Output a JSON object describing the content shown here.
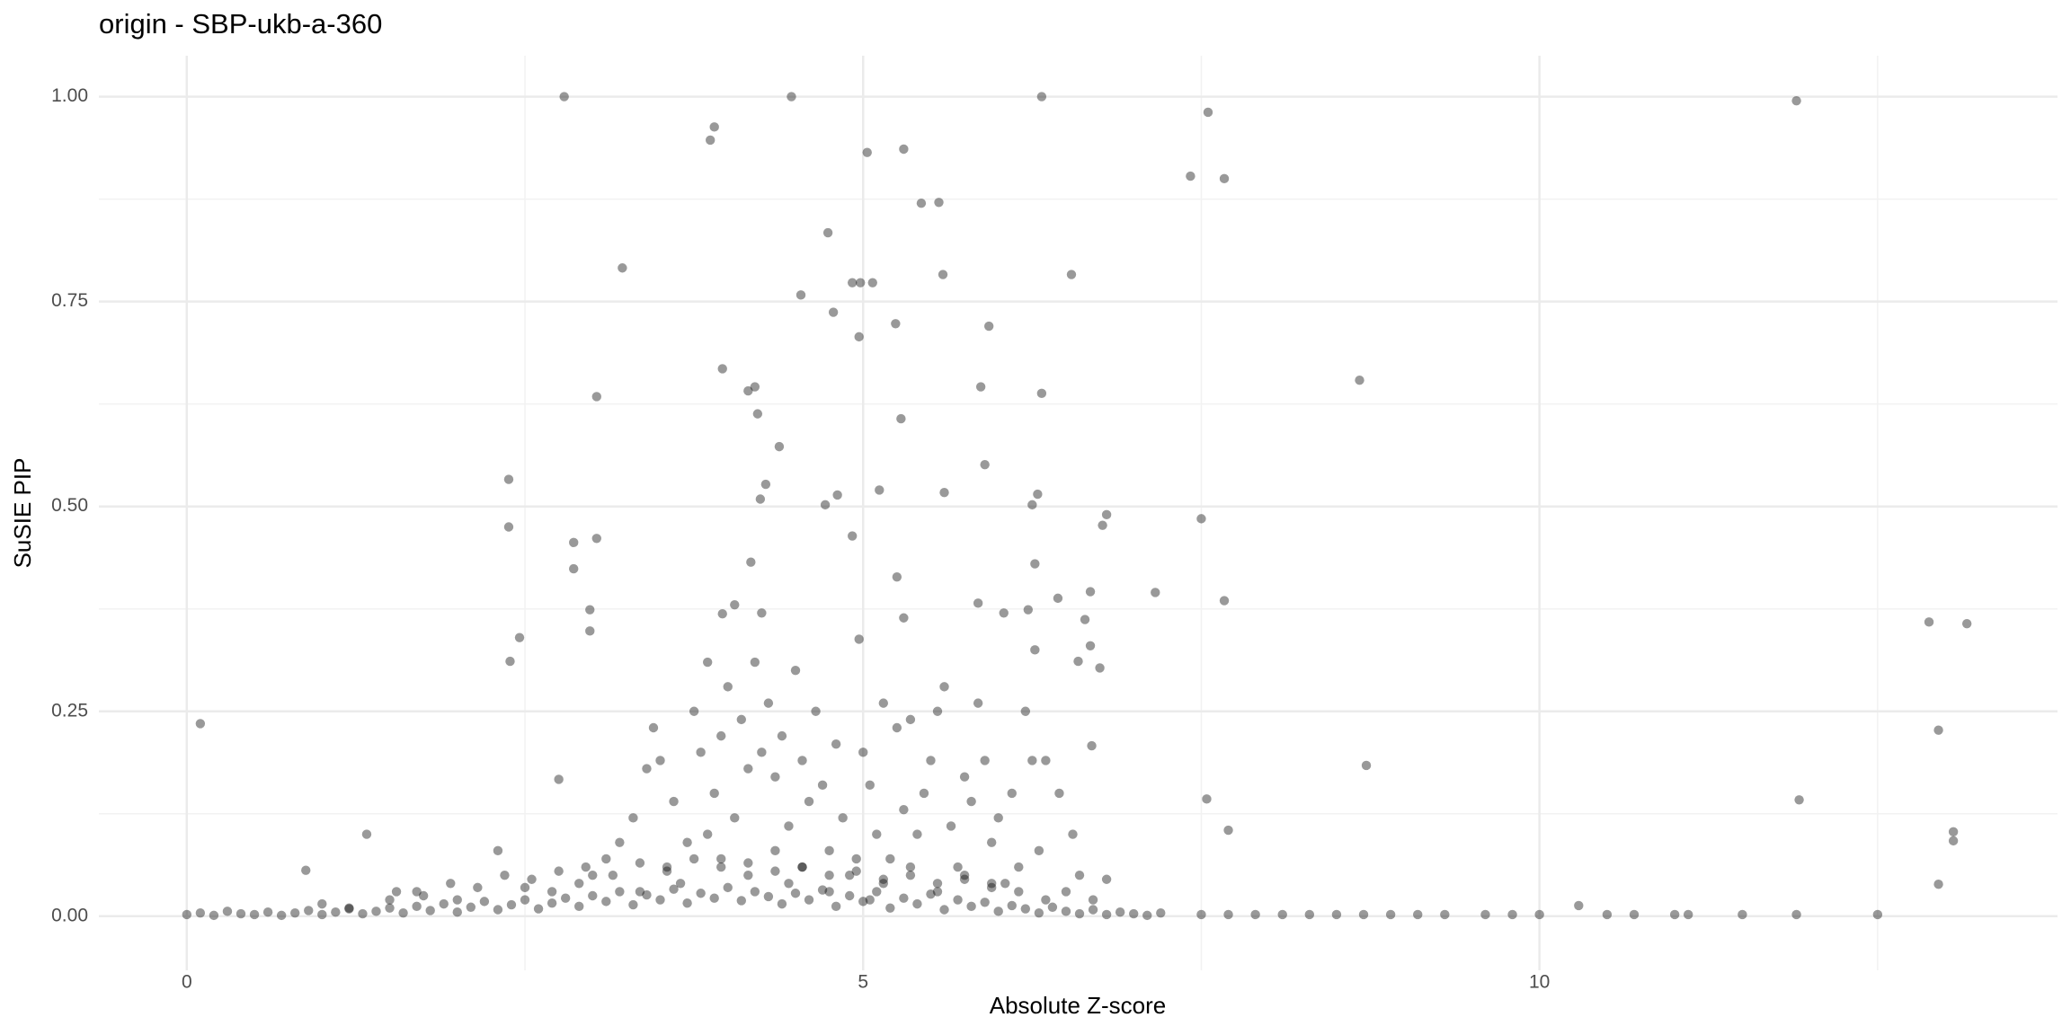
{
  "chart_data": {
    "type": "scatter",
    "title": "origin - SBP-ukb-a-360",
    "x_label": "Absolute Z-score",
    "y_label": "SuSIE PIP",
    "color": "#000000",
    "opacity": 0.4,
    "grid": true,
    "minor_grid": true,
    "xlim": [
      -0.65,
      13.83
    ],
    "ylim": [
      -0.066,
      1.05
    ],
    "xticks": [
      0,
      5,
      10
    ],
    "yticks": [
      {
        "value": 0,
        "label": "0.00"
      },
      {
        "value": 0.25,
        "label": "0.25"
      },
      {
        "value": 0.5,
        "label": "0.50"
      },
      {
        "value": 0.75,
        "label": "0.75"
      },
      {
        "value": 1,
        "label": "1.00"
      }
    ],
    "x": [
      2.79,
      4.47,
      6.32,
      11.9,
      3.9,
      3.87,
      5.3,
      5.03,
      7.55,
      7.42,
      7.67,
      5.43,
      5.56,
      4.74,
      3.22,
      5.59,
      6.54,
      4.92,
      4.98,
      5.07,
      4.54,
      4.78,
      5.24,
      5.93,
      4.97,
      3.96,
      8.67,
      4.15,
      4.2,
      5.87,
      6.32,
      3.03,
      4.22,
      5.28,
      4.38,
      5.9,
      2.38,
      4.28,
      5.12,
      5.6,
      6.29,
      4.81,
      4.24,
      4.72,
      6.25,
      6.8,
      7.5,
      6.77,
      2.38,
      4.92,
      3.03,
      2.86,
      5.25,
      2.86,
      6.27,
      7.16,
      6.68,
      7.67,
      6.44,
      4.17,
      12.88,
      13.16,
      2.98,
      5.85,
      6.04,
      6.22,
      3.96,
      5.3,
      6.64,
      2.46,
      2.98,
      4.97,
      6.68,
      6.27,
      6.59,
      2.39,
      6.75,
      12.95,
      0.1,
      8.72,
      7.54,
      11.92,
      13.06,
      7.7,
      13.06,
      12.95,
      1.33,
      2.75,
      6.69,
      0.88,
      7.5,
      7.7,
      7.9,
      8.1,
      8.3,
      8.5,
      8.7,
      8.9,
      9.1,
      9.3,
      9.6,
      9.8,
      10.0,
      10.29,
      10.5,
      10.7,
      11.0,
      11.1,
      11.5,
      11.9,
      12.5,
      3.3,
      3.4,
      3.45,
      3.5,
      3.6,
      3.7,
      3.75,
      3.8,
      3.85,
      3.9,
      3.95,
      4.0,
      4.05,
      4.1,
      4.15,
      4.2,
      4.25,
      4.3,
      4.35,
      4.4,
      4.45,
      4.5,
      4.55,
      4.6,
      4.65,
      4.7,
      4.75,
      4.8,
      4.85,
      4.9,
      5.0,
      5.05,
      5.1,
      5.15,
      5.2,
      5.25,
      5.3,
      5.35,
      5.4,
      5.45,
      5.5,
      5.55,
      5.6,
      5.65,
      5.7,
      5.75,
      5.8,
      5.85,
      5.9,
      5.95,
      6.0,
      6.05,
      6.1,
      6.2,
      6.25,
      6.3,
      6.35,
      6.45,
      6.5,
      6.55,
      6.6,
      6.7,
      6.8,
      4.25,
      4.05,
      3.2,
      3.1,
      3.0,
      2.9,
      2.7,
      2.5,
      2.3,
      2.0,
      1.7,
      1.5,
      1.2,
      1.0,
      3.55,
      3.65,
      3.95,
      4.15,
      4.35,
      4.55,
      4.75,
      4.95,
      5.15,
      5.35,
      5.55,
      5.75,
      5.95,
      6.15,
      3.35,
      3.85,
      4.45,
      5.05,
      0.0,
      0.1,
      0.2,
      0.3,
      0.4,
      0.5,
      0.6,
      0.7,
      0.8,
      0.9,
      1.0,
      1.1,
      1.2,
      1.3,
      1.4,
      1.5,
      1.6,
      1.7,
      1.8,
      1.9,
      2.0,
      2.1,
      2.2,
      2.3,
      2.4,
      2.5,
      2.6,
      2.7,
      2.8,
      2.9,
      3.0,
      3.1,
      3.2,
      3.3,
      3.4,
      3.5,
      3.6,
      3.7,
      3.8,
      3.9,
      4.0,
      4.1,
      4.2,
      4.3,
      4.4,
      4.5,
      4.6,
      4.7,
      4.8,
      4.9,
      5.0,
      5.1,
      5.2,
      5.3,
      5.4,
      5.5,
      5.6,
      5.7,
      5.8,
      5.9,
      6.0,
      6.1,
      6.2,
      6.3,
      6.4,
      6.5,
      6.6,
      6.7,
      6.8,
      6.9,
      7.0,
      7.1,
      7.2,
      1.55,
      1.75,
      1.95,
      2.15,
      2.35,
      2.55,
      2.75,
      2.95,
      3.15,
      3.35,
      3.55,
      3.75,
      3.95,
      4.15,
      4.35,
      4.55,
      4.75,
      4.95,
      5.15,
      5.35,
      5.55,
      5.75,
      5.95,
      6.15,
      6.35
    ],
    "values": [
      1.0,
      1.0,
      1.0,
      0.995,
      0.963,
      0.947,
      0.936,
      0.932,
      0.981,
      0.903,
      0.9,
      0.87,
      0.871,
      0.834,
      0.791,
      0.783,
      0.783,
      0.773,
      0.773,
      0.773,
      0.758,
      0.737,
      0.723,
      0.72,
      0.707,
      0.668,
      0.654,
      0.641,
      0.646,
      0.646,
      0.638,
      0.634,
      0.613,
      0.607,
      0.573,
      0.551,
      0.533,
      0.527,
      0.52,
      0.517,
      0.515,
      0.514,
      0.509,
      0.502,
      0.502,
      0.49,
      0.485,
      0.477,
      0.475,
      0.464,
      0.461,
      0.456,
      0.414,
      0.424,
      0.43,
      0.395,
      0.396,
      0.385,
      0.388,
      0.432,
      0.359,
      0.357,
      0.374,
      0.382,
      0.37,
      0.374,
      0.369,
      0.364,
      0.362,
      0.34,
      0.348,
      0.338,
      0.33,
      0.325,
      0.311,
      0.311,
      0.303,
      0.227,
      0.235,
      0.184,
      0.143,
      0.142,
      0.103,
      0.105,
      0.092,
      0.039,
      0.1,
      0.167,
      0.208,
      0.056,
      0.002,
      0.002,
      0.002,
      0.002,
      0.002,
      0.002,
      0.002,
      0.002,
      0.002,
      0.002,
      0.002,
      0.002,
      0.002,
      0.013,
      0.002,
      0.002,
      0.002,
      0.002,
      0.002,
      0.002,
      0.002,
      0.12,
      0.18,
      0.23,
      0.19,
      0.14,
      0.09,
      0.25,
      0.2,
      0.31,
      0.15,
      0.22,
      0.28,
      0.12,
      0.24,
      0.18,
      0.31,
      0.2,
      0.26,
      0.17,
      0.22,
      0.11,
      0.3,
      0.19,
      0.14,
      0.25,
      0.16,
      0.08,
      0.21,
      0.12,
      0.05,
      0.2,
      0.16,
      0.1,
      0.26,
      0.07,
      0.23,
      0.13,
      0.24,
      0.1,
      0.15,
      0.19,
      0.25,
      0.28,
      0.11,
      0.06,
      0.17,
      0.14,
      0.26,
      0.19,
      0.09,
      0.12,
      0.04,
      0.15,
      0.25,
      0.19,
      0.08,
      0.19,
      0.15,
      0.03,
      0.1,
      0.05,
      0.02,
      0.045,
      0.37,
      0.38,
      0.09,
      0.07,
      0.05,
      0.04,
      0.03,
      0.035,
      0.08,
      0.02,
      0.03,
      0.02,
      0.01,
      0.015,
      0.06,
      0.04,
      0.07,
      0.05,
      0.08,
      0.06,
      0.03,
      0.07,
      0.04,
      0.06,
      0.03,
      0.05,
      0.04,
      0.06,
      0.03,
      0.1,
      0.04,
      0.02,
      0.002,
      0.004,
      0.001,
      0.006,
      0.003,
      0.002,
      0.005,
      0.001,
      0.004,
      0.007,
      0.002,
      0.005,
      0.009,
      0.003,
      0.006,
      0.01,
      0.004,
      0.012,
      0.007,
      0.015,
      0.005,
      0.011,
      0.018,
      0.008,
      0.014,
      0.02,
      0.009,
      0.016,
      0.022,
      0.012,
      0.025,
      0.018,
      0.03,
      0.014,
      0.026,
      0.02,
      0.033,
      0.016,
      0.028,
      0.022,
      0.035,
      0.019,
      0.03,
      0.024,
      0.015,
      0.028,
      0.02,
      0.032,
      0.012,
      0.025,
      0.018,
      0.03,
      0.01,
      0.022,
      0.015,
      0.027,
      0.008,
      0.02,
      0.012,
      0.017,
      0.006,
      0.013,
      0.009,
      0.004,
      0.011,
      0.006,
      0.003,
      0.008,
      0.002,
      0.005,
      0.003,
      0.001,
      0.004,
      0.03,
      0.025,
      0.04,
      0.035,
      0.05,
      0.045,
      0.055,
      0.06,
      0.05,
      0.065,
      0.055,
      0.07,
      0.06,
      0.065,
      0.055,
      0.06,
      0.05,
      0.055,
      0.045,
      0.05,
      0.04,
      0.045,
      0.035,
      0.03,
      0.02
    ]
  }
}
